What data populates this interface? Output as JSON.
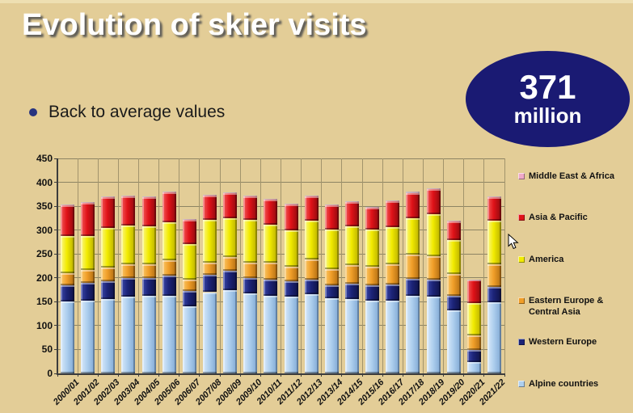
{
  "slide": {
    "title": "Evolution of skier visits",
    "bullet": "Back to average values",
    "badge": {
      "value": "371",
      "unit": "million"
    }
  },
  "chart_data": {
    "type": "bar",
    "stacked": true,
    "title": "",
    "xlabel": "",
    "ylabel": "",
    "ylim": [
      0,
      450
    ],
    "y_ticks": [
      0,
      50,
      100,
      150,
      200,
      250,
      300,
      350,
      400,
      450
    ],
    "grid": true,
    "legend_position": "right",
    "categories": [
      "2000/01",
      "2001/02",
      "2002/03",
      "2003/04",
      "2004/05",
      "2005/06",
      "2006/07",
      "2007/08",
      "2008/09",
      "2009/10",
      "2010/11",
      "2011/12",
      "2012/13",
      "2013/14",
      "2014/15",
      "2015/16",
      "2016/17",
      "2017/18",
      "2018/19",
      "2019/20",
      "2020/21",
      "2021/22"
    ],
    "series": [
      {
        "name": "Alpine countries",
        "color": "#aecfee",
        "highlight": "#d9e9fa",
        "shadow": "#7fa8d4",
        "values": [
          150,
          152,
          156,
          160,
          162,
          163,
          141,
          170,
          175,
          167,
          163,
          160,
          165,
          158,
          156,
          153,
          152,
          163,
          160,
          132,
          24,
          149
        ]
      },
      {
        "name": "Western Europe",
        "color": "#1b2377",
        "highlight": "#3a47a8",
        "shadow": "#101347",
        "values": [
          34,
          37,
          37,
          40,
          38,
          42,
          32,
          37,
          40,
          33,
          34,
          33,
          32,
          26,
          32,
          31,
          34,
          35,
          36,
          31,
          25,
          32
        ]
      },
      {
        "name": "Eastern Europe & Central Asia",
        "color": "#f09e28",
        "highlight": "#fac868",
        "shadow": "#b06d12",
        "values": [
          25,
          27,
          28,
          28,
          28,
          32,
          24,
          25,
          28,
          31,
          34,
          31,
          42,
          35,
          39,
          39,
          43,
          50,
          50,
          45,
          30,
          47
        ]
      },
      {
        "name": "America",
        "color": "#f2eb00",
        "highlight": "#fbf787",
        "shadow": "#b8ae00",
        "values": [
          78,
          72,
          84,
          81,
          80,
          80,
          74,
          89,
          82,
          90,
          80,
          76,
          81,
          82,
          81,
          78,
          77,
          77,
          87,
          71,
          69,
          91
        ]
      },
      {
        "name": "Asia & Pacific",
        "color": "#e01218",
        "highlight": "#f25a5a",
        "shadow": "#8f0a0e",
        "values": [
          65,
          69,
          64,
          61,
          60,
          62,
          50,
          51,
          52,
          49,
          52,
          53,
          50,
          51,
          51,
          46,
          54,
          53,
          53,
          39,
          48,
          50
        ]
      },
      {
        "name": "Middle East & Africa",
        "color": "#efa8c8",
        "highlight": "#f9d2e3",
        "shadow": "#c06d96",
        "values": [
          2,
          2,
          2,
          2,
          2,
          2,
          2,
          2,
          2,
          2,
          2,
          2,
          2,
          2,
          2,
          2,
          2,
          2,
          2,
          2,
          1,
          2
        ]
      }
    ]
  }
}
